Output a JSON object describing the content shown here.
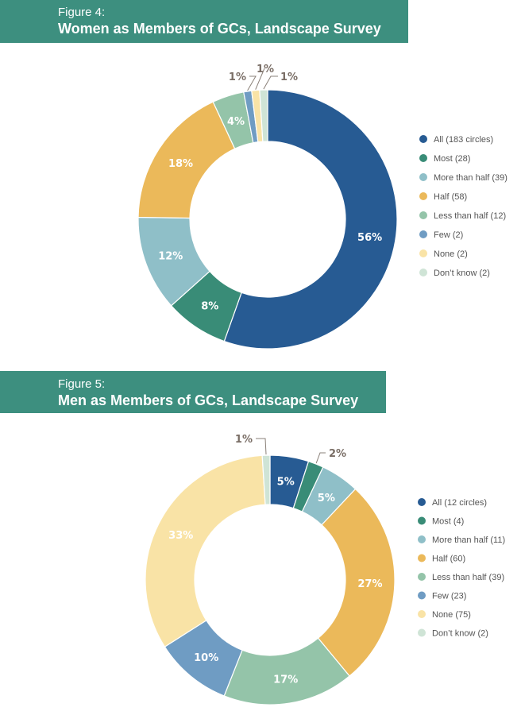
{
  "chart_data": [
    {
      "type": "pie",
      "figure_label": "Figure 4:",
      "title": "Women as Members of GCs, Landscape Survey",
      "categories": [
        "All (183 circles)",
        "Most (28)",
        "More than half (39)",
        "Half (58)",
        "Less than half (12)",
        "Few (2)",
        "None (2)",
        "Don’t know (2)"
      ],
      "values": [
        56,
        8,
        12,
        18,
        4,
        1,
        1,
        1
      ],
      "value_labels": [
        "56%",
        "8%",
        "12%",
        "18%",
        "4%",
        "1%",
        "1%",
        "1%"
      ],
      "colors": [
        "#275b93",
        "#398c77",
        "#8fbfc8",
        "#ebb95a",
        "#94c4a9",
        "#6f9cc3",
        "#f9e3a6",
        "#cfe4d6"
      ],
      "legend_position": "right"
    },
    {
      "type": "pie",
      "figure_label": "Figure 5:",
      "title": "Men as Members of GCs, Landscape Survey",
      "categories": [
        "All (12 circles)",
        "Most (4)",
        "More than half (11)",
        "Half (60)",
        "Less than half (39)",
        "Few (23)",
        "None (75)",
        "Don’t know (2)"
      ],
      "values": [
        5,
        2,
        5,
        27,
        17,
        10,
        33,
        1
      ],
      "value_labels": [
        "5%",
        "2%",
        "5%",
        "27%",
        "17%",
        "10%",
        "33%",
        "1%"
      ],
      "colors": [
        "#275b93",
        "#398c77",
        "#8fbfc8",
        "#ebb95a",
        "#94c4a9",
        "#6f9cc3",
        "#f9e3a6",
        "#cfe4d6"
      ],
      "legend_position": "right"
    }
  ]
}
